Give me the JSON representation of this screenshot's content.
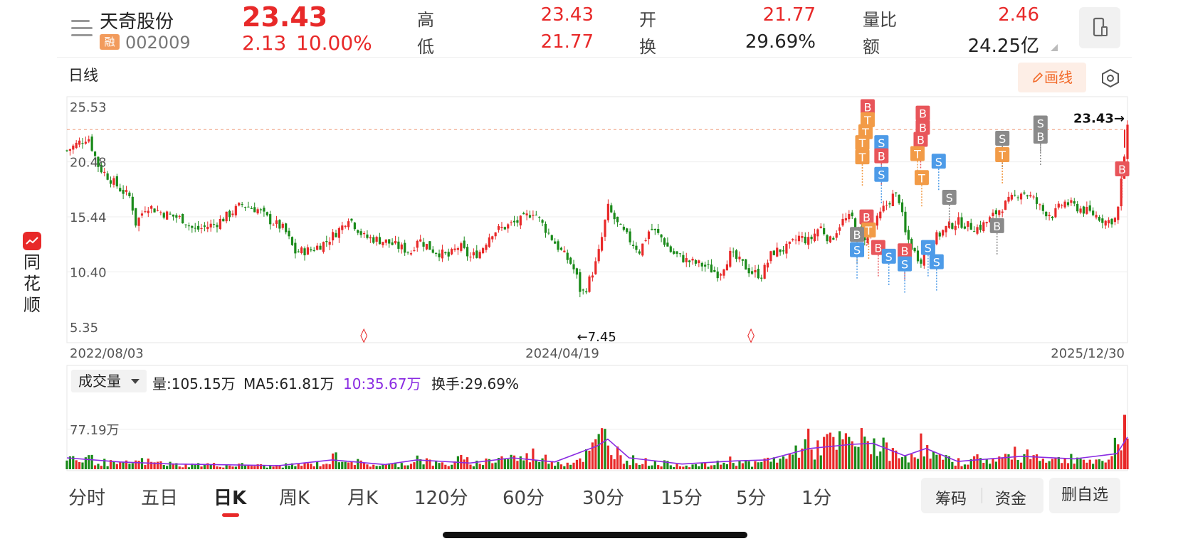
{
  "header": {
    "stock_name": "天奇股份",
    "margin_badge": "融",
    "stock_code": "002009",
    "price": "23.43",
    "change": "2.13",
    "change_pct": "10.00%",
    "quote": [
      {
        "label": "高",
        "value": "23.43",
        "color": "red"
      },
      {
        "label": "低",
        "value": "21.77",
        "color": "red"
      },
      {
        "label": "开",
        "value": "21.77",
        "color": "red"
      },
      {
        "label": "换",
        "value": "29.69%",
        "color": "dark"
      },
      {
        "label": "量比",
        "value": "2.46",
        "color": "red"
      },
      {
        "label": "额",
        "value": "24.25亿",
        "color": "dark"
      }
    ]
  },
  "chart_toolbar": {
    "period": "日线",
    "draw_label": "画线"
  },
  "side_brand": "同花顺",
  "colors": {
    "up": "#e82929",
    "down": "#1a8a1a",
    "buy": "#e8555a",
    "sell": "#4d9be8",
    "t": "#f29b47",
    "gray": "#8a8a8a",
    "ma5": "#8a2be2"
  },
  "chart_data": {
    "type": "candlestick",
    "y_ticks": [
      "25.53",
      "20.48",
      "15.44",
      "10.40",
      "5.35"
    ],
    "ylim": [
      5.35,
      25.53
    ],
    "x_labels": [
      "2022/08/03",
      "2024/04/19",
      "2025/12/30"
    ],
    "last_price_label": "23.43→",
    "min_label": "←7.45",
    "close_series": [
      {
        "t": 0.0,
        "v": 21.5
      },
      {
        "t": 0.02,
        "v": 22.8
      },
      {
        "t": 0.03,
        "v": 20.0
      },
      {
        "t": 0.05,
        "v": 18.0
      },
      {
        "t": 0.06,
        "v": 17.2
      },
      {
        "t": 0.065,
        "v": 14.8
      },
      {
        "t": 0.075,
        "v": 16.5
      },
      {
        "t": 0.09,
        "v": 15.8
      },
      {
        "t": 0.11,
        "v": 15.2
      },
      {
        "t": 0.12,
        "v": 14.2
      },
      {
        "t": 0.14,
        "v": 14.8
      },
      {
        "t": 0.155,
        "v": 15.8
      },
      {
        "t": 0.165,
        "v": 16.6
      },
      {
        "t": 0.18,
        "v": 16.1
      },
      {
        "t": 0.19,
        "v": 15.2
      },
      {
        "t": 0.205,
        "v": 14.3
      },
      {
        "t": 0.215,
        "v": 12.2
      },
      {
        "t": 0.23,
        "v": 12.4
      },
      {
        "t": 0.245,
        "v": 13.2
      },
      {
        "t": 0.26,
        "v": 14.6
      },
      {
        "t": 0.265,
        "v": 15.5
      },
      {
        "t": 0.28,
        "v": 13.6
      },
      {
        "t": 0.3,
        "v": 13.2
      },
      {
        "t": 0.315,
        "v": 12.6
      },
      {
        "t": 0.325,
        "v": 12.2
      },
      {
        "t": 0.33,
        "v": 13.5
      },
      {
        "t": 0.345,
        "v": 12.4
      },
      {
        "t": 0.36,
        "v": 11.8
      },
      {
        "t": 0.37,
        "v": 12.8
      },
      {
        "t": 0.38,
        "v": 11.7
      },
      {
        "t": 0.39,
        "v": 12.3
      },
      {
        "t": 0.4,
        "v": 14.0
      },
      {
        "t": 0.415,
        "v": 14.6
      },
      {
        "t": 0.43,
        "v": 15.2
      },
      {
        "t": 0.44,
        "v": 16.0
      },
      {
        "t": 0.45,
        "v": 14.5
      },
      {
        "t": 0.465,
        "v": 12.4
      },
      {
        "t": 0.475,
        "v": 11.2
      },
      {
        "t": 0.48,
        "v": 10.2
      },
      {
        "t": 0.485,
        "v": 8.3
      },
      {
        "t": 0.49,
        "v": 9.0
      },
      {
        "t": 0.5,
        "v": 11.5
      },
      {
        "t": 0.505,
        "v": 13.8
      },
      {
        "t": 0.51,
        "v": 16.3
      },
      {
        "t": 0.52,
        "v": 14.6
      },
      {
        "t": 0.53,
        "v": 13.4
      },
      {
        "t": 0.54,
        "v": 12.3
      },
      {
        "t": 0.55,
        "v": 14.4
      },
      {
        "t": 0.56,
        "v": 13.6
      },
      {
        "t": 0.57,
        "v": 12.2
      },
      {
        "t": 0.585,
        "v": 11.4
      },
      {
        "t": 0.6,
        "v": 11.0
      },
      {
        "t": 0.615,
        "v": 10.2
      },
      {
        "t": 0.625,
        "v": 12.0
      },
      {
        "t": 0.635,
        "v": 11.3
      },
      {
        "t": 0.645,
        "v": 10.4
      },
      {
        "t": 0.655,
        "v": 10.1
      },
      {
        "t": 0.665,
        "v": 12.2
      },
      {
        "t": 0.68,
        "v": 12.6
      },
      {
        "t": 0.69,
        "v": 13.6
      },
      {
        "t": 0.7,
        "v": 13.2
      },
      {
        "t": 0.71,
        "v": 14.6
      },
      {
        "t": 0.72,
        "v": 13.2
      },
      {
        "t": 0.73,
        "v": 15.0
      },
      {
        "t": 0.74,
        "v": 15.4
      },
      {
        "t": 0.75,
        "v": 13.4
      },
      {
        "t": 0.76,
        "v": 14.4
      },
      {
        "t": 0.77,
        "v": 16.2
      },
      {
        "t": 0.78,
        "v": 17.5
      },
      {
        "t": 0.785,
        "v": 17.0
      },
      {
        "t": 0.79,
        "v": 14.0
      },
      {
        "t": 0.8,
        "v": 12.0
      },
      {
        "t": 0.805,
        "v": 11.5
      },
      {
        "t": 0.81,
        "v": 12.8
      },
      {
        "t": 0.82,
        "v": 13.6
      },
      {
        "t": 0.83,
        "v": 14.5
      },
      {
        "t": 0.84,
        "v": 15.0
      },
      {
        "t": 0.85,
        "v": 14.6
      },
      {
        "t": 0.86,
        "v": 14.4
      },
      {
        "t": 0.87,
        "v": 15.2
      },
      {
        "t": 0.88,
        "v": 16.2
      },
      {
        "t": 0.89,
        "v": 17.0
      },
      {
        "t": 0.9,
        "v": 17.8
      },
      {
        "t": 0.91,
        "v": 17.2
      },
      {
        "t": 0.92,
        "v": 16.0
      },
      {
        "t": 0.93,
        "v": 15.6
      },
      {
        "t": 0.94,
        "v": 16.8
      },
      {
        "t": 0.95,
        "v": 16.4
      },
      {
        "t": 0.96,
        "v": 16.0
      },
      {
        "t": 0.97,
        "v": 15.6
      },
      {
        "t": 0.98,
        "v": 15.0
      },
      {
        "t": 0.99,
        "v": 15.3
      },
      {
        "t": 1.0,
        "v": 23.43
      }
    ],
    "signals": [
      {
        "t": 0.755,
        "text": "B",
        "kind": "buy",
        "v": 25.5
      },
      {
        "t": 0.755,
        "text": "T",
        "kind": "t",
        "v": 24.3
      },
      {
        "t": 0.753,
        "text": "T",
        "kind": "t",
        "v": 23.2
      },
      {
        "t": 0.75,
        "text": "T",
        "kind": "t",
        "v": 22.2
      },
      {
        "t": 0.75,
        "text": "T",
        "kind": "t",
        "v": 20.9
      },
      {
        "t": 0.768,
        "text": "S",
        "kind": "sell",
        "v": 22.2
      },
      {
        "t": 0.768,
        "text": "B",
        "kind": "buy",
        "v": 21.0
      },
      {
        "t": 0.768,
        "text": "S",
        "kind": "sell",
        "v": 19.3
      },
      {
        "t": 0.754,
        "text": "B",
        "kind": "buy",
        "v": 15.4
      },
      {
        "t": 0.756,
        "text": "T",
        "kind": "t",
        "v": 14.2
      },
      {
        "t": 0.745,
        "text": "B",
        "kind": "gray",
        "v": 13.8
      },
      {
        "t": 0.745,
        "text": "S",
        "kind": "sell",
        "v": 12.4
      },
      {
        "t": 0.765,
        "text": "B",
        "kind": "buy",
        "v": 12.6
      },
      {
        "t": 0.775,
        "text": "S",
        "kind": "sell",
        "v": 11.8
      },
      {
        "t": 0.807,
        "text": "B",
        "kind": "buy",
        "v": 24.9
      },
      {
        "t": 0.807,
        "text": "B",
        "kind": "buy",
        "v": 23.6
      },
      {
        "t": 0.805,
        "text": "B",
        "kind": "buy",
        "v": 22.5
      },
      {
        "t": 0.802,
        "text": "T",
        "kind": "t",
        "v": 21.2
      },
      {
        "t": 0.806,
        "text": "T",
        "kind": "t",
        "v": 19.0
      },
      {
        "t": 0.822,
        "text": "S",
        "kind": "sell",
        "v": 20.5
      },
      {
        "t": 0.832,
        "text": "S",
        "kind": "gray",
        "v": 17.2
      },
      {
        "t": 0.79,
        "text": "B",
        "kind": "buy",
        "v": 12.3
      },
      {
        "t": 0.79,
        "text": "S",
        "kind": "sell",
        "v": 11.1
      },
      {
        "t": 0.812,
        "text": "S",
        "kind": "sell",
        "v": 12.6
      },
      {
        "t": 0.82,
        "text": "S",
        "kind": "sell",
        "v": 11.3
      },
      {
        "t": 0.882,
        "text": "S",
        "kind": "gray",
        "v": 22.6
      },
      {
        "t": 0.882,
        "text": "T",
        "kind": "t",
        "v": 21.1
      },
      {
        "t": 0.877,
        "text": "B",
        "kind": "gray",
        "v": 14.6
      },
      {
        "t": 0.918,
        "text": "S",
        "kind": "gray",
        "v": 24.0
      },
      {
        "t": 0.918,
        "text": "B",
        "kind": "gray",
        "v": 22.8
      },
      {
        "t": 0.995,
        "text": "B",
        "kind": "buy",
        "v": 19.8
      }
    ],
    "markers": [
      {
        "t": 0.28,
        "text": "◊"
      },
      {
        "t": 0.645,
        "text": "◊"
      }
    ],
    "volume": {
      "tick_label": "77.19万",
      "ylim": [
        0,
        140
      ],
      "tick_value": 77.19,
      "bars": [
        {
          "t": 0.0,
          "v": 30,
          "up": true
        },
        {
          "t": 0.01,
          "v": 18,
          "up": false
        },
        {
          "t": 0.02,
          "v": 22,
          "up": true
        },
        {
          "t": 0.03,
          "v": 15,
          "up": false
        },
        {
          "t": 0.05,
          "v": 10,
          "up": true
        },
        {
          "t": 0.07,
          "v": 16,
          "up": false
        },
        {
          "t": 0.09,
          "v": 12,
          "up": true
        },
        {
          "t": 0.11,
          "v": 8,
          "up": false
        },
        {
          "t": 0.13,
          "v": 10,
          "up": true
        },
        {
          "t": 0.15,
          "v": 7,
          "up": false
        },
        {
          "t": 0.17,
          "v": 9,
          "up": true
        },
        {
          "t": 0.19,
          "v": 6,
          "up": false
        },
        {
          "t": 0.21,
          "v": 8,
          "up": true
        },
        {
          "t": 0.23,
          "v": 10,
          "up": false
        },
        {
          "t": 0.245,
          "v": 12,
          "up": true
        },
        {
          "t": 0.255,
          "v": 28,
          "up": true
        },
        {
          "t": 0.265,
          "v": 20,
          "up": false
        },
        {
          "t": 0.28,
          "v": 10,
          "up": true
        },
        {
          "t": 0.3,
          "v": 8,
          "up": false
        },
        {
          "t": 0.32,
          "v": 11,
          "up": true
        },
        {
          "t": 0.33,
          "v": 24,
          "up": true
        },
        {
          "t": 0.345,
          "v": 12,
          "up": false
        },
        {
          "t": 0.36,
          "v": 10,
          "up": true
        },
        {
          "t": 0.37,
          "v": 20,
          "up": true
        },
        {
          "t": 0.385,
          "v": 12,
          "up": false
        },
        {
          "t": 0.4,
          "v": 18,
          "up": true
        },
        {
          "t": 0.415,
          "v": 26,
          "up": true
        },
        {
          "t": 0.43,
          "v": 20,
          "up": false
        },
        {
          "t": 0.44,
          "v": 30,
          "up": true
        },
        {
          "t": 0.455,
          "v": 18,
          "up": false
        },
        {
          "t": 0.47,
          "v": 12,
          "up": true
        },
        {
          "t": 0.48,
          "v": 18,
          "up": false
        },
        {
          "t": 0.49,
          "v": 30,
          "up": true
        },
        {
          "t": 0.5,
          "v": 48,
          "up": true
        },
        {
          "t": 0.505,
          "v": 70,
          "up": false
        },
        {
          "t": 0.51,
          "v": 55,
          "up": true
        },
        {
          "t": 0.515,
          "v": 45,
          "up": false
        },
        {
          "t": 0.52,
          "v": 32,
          "up": true
        },
        {
          "t": 0.53,
          "v": 20,
          "up": false
        },
        {
          "t": 0.545,
          "v": 15,
          "up": true
        },
        {
          "t": 0.56,
          "v": 12,
          "up": false
        },
        {
          "t": 0.575,
          "v": 10,
          "up": true
        },
        {
          "t": 0.59,
          "v": 8,
          "up": false
        },
        {
          "t": 0.61,
          "v": 9,
          "up": true
        },
        {
          "t": 0.625,
          "v": 18,
          "up": true
        },
        {
          "t": 0.635,
          "v": 15,
          "up": false
        },
        {
          "t": 0.65,
          "v": 10,
          "up": true
        },
        {
          "t": 0.665,
          "v": 22,
          "up": true
        },
        {
          "t": 0.675,
          "v": 20,
          "up": false
        },
        {
          "t": 0.685,
          "v": 30,
          "up": true
        },
        {
          "t": 0.695,
          "v": 62,
          "up": true
        },
        {
          "t": 0.705,
          "v": 40,
          "up": false
        },
        {
          "t": 0.715,
          "v": 55,
          "up": true
        },
        {
          "t": 0.725,
          "v": 48,
          "up": false
        },
        {
          "t": 0.735,
          "v": 56,
          "up": true
        },
        {
          "t": 0.745,
          "v": 50,
          "up": false
        },
        {
          "t": 0.755,
          "v": 62,
          "up": true
        },
        {
          "t": 0.765,
          "v": 45,
          "up": false
        },
        {
          "t": 0.775,
          "v": 38,
          "up": true
        },
        {
          "t": 0.785,
          "v": 22,
          "up": false
        },
        {
          "t": 0.795,
          "v": 30,
          "up": true
        },
        {
          "t": 0.805,
          "v": 50,
          "up": false
        },
        {
          "t": 0.815,
          "v": 28,
          "up": true
        },
        {
          "t": 0.83,
          "v": 18,
          "up": false
        },
        {
          "t": 0.845,
          "v": 14,
          "up": true
        },
        {
          "t": 0.86,
          "v": 22,
          "up": false
        },
        {
          "t": 0.875,
          "v": 18,
          "up": true
        },
        {
          "t": 0.89,
          "v": 28,
          "up": false
        },
        {
          "t": 0.905,
          "v": 32,
          "up": true
        },
        {
          "t": 0.92,
          "v": 24,
          "up": false
        },
        {
          "t": 0.935,
          "v": 18,
          "up": true
        },
        {
          "t": 0.95,
          "v": 26,
          "up": false
        },
        {
          "t": 0.965,
          "v": 14,
          "up": true
        },
        {
          "t": 0.98,
          "v": 12,
          "up": false
        },
        {
          "t": 0.99,
          "v": 58,
          "up": true
        },
        {
          "t": 1.0,
          "v": 105,
          "up": true
        }
      ],
      "ma_series": [
        {
          "t": 0.0,
          "v": 22
        },
        {
          "t": 0.05,
          "v": 14
        },
        {
          "t": 0.1,
          "v": 10
        },
        {
          "t": 0.2,
          "v": 7
        },
        {
          "t": 0.25,
          "v": 18
        },
        {
          "t": 0.3,
          "v": 9
        },
        {
          "t": 0.33,
          "v": 18
        },
        {
          "t": 0.38,
          "v": 12
        },
        {
          "t": 0.42,
          "v": 22
        },
        {
          "t": 0.46,
          "v": 14
        },
        {
          "t": 0.5,
          "v": 45
        },
        {
          "t": 0.51,
          "v": 58
        },
        {
          "t": 0.53,
          "v": 22
        },
        {
          "t": 0.58,
          "v": 10
        },
        {
          "t": 0.63,
          "v": 16
        },
        {
          "t": 0.66,
          "v": 18
        },
        {
          "t": 0.7,
          "v": 40
        },
        {
          "t": 0.74,
          "v": 48
        },
        {
          "t": 0.76,
          "v": 50
        },
        {
          "t": 0.79,
          "v": 26
        },
        {
          "t": 0.81,
          "v": 40
        },
        {
          "t": 0.84,
          "v": 15
        },
        {
          "t": 0.9,
          "v": 25
        },
        {
          "t": 0.95,
          "v": 20
        },
        {
          "t": 0.99,
          "v": 30
        },
        {
          "t": 1.0,
          "v": 62
        }
      ]
    }
  },
  "volume_panel": {
    "indicator": "成交量",
    "stats": [
      {
        "text": "量:105.15万",
        "color": "#222"
      },
      {
        "text": "MA5:61.81万",
        "color": "#222"
      },
      {
        "text": "10:35.67万",
        "color": "#8a2be2"
      },
      {
        "text": "换手:29.69%",
        "color": "#222"
      }
    ]
  },
  "tabs": [
    {
      "label": "分时",
      "active": false
    },
    {
      "label": "五日",
      "active": false
    },
    {
      "label": "日K",
      "active": true
    },
    {
      "label": "周K",
      "active": false
    },
    {
      "label": "月K",
      "active": false
    },
    {
      "label": "120分",
      "active": false
    },
    {
      "label": "60分",
      "active": false
    },
    {
      "label": "30分",
      "active": false
    },
    {
      "label": "15分",
      "active": false
    },
    {
      "label": "5分",
      "active": false
    },
    {
      "label": "1分",
      "active": false
    }
  ],
  "actions": {
    "chips": "筹码",
    "funds": "资金",
    "remove_watch": "删自选"
  }
}
